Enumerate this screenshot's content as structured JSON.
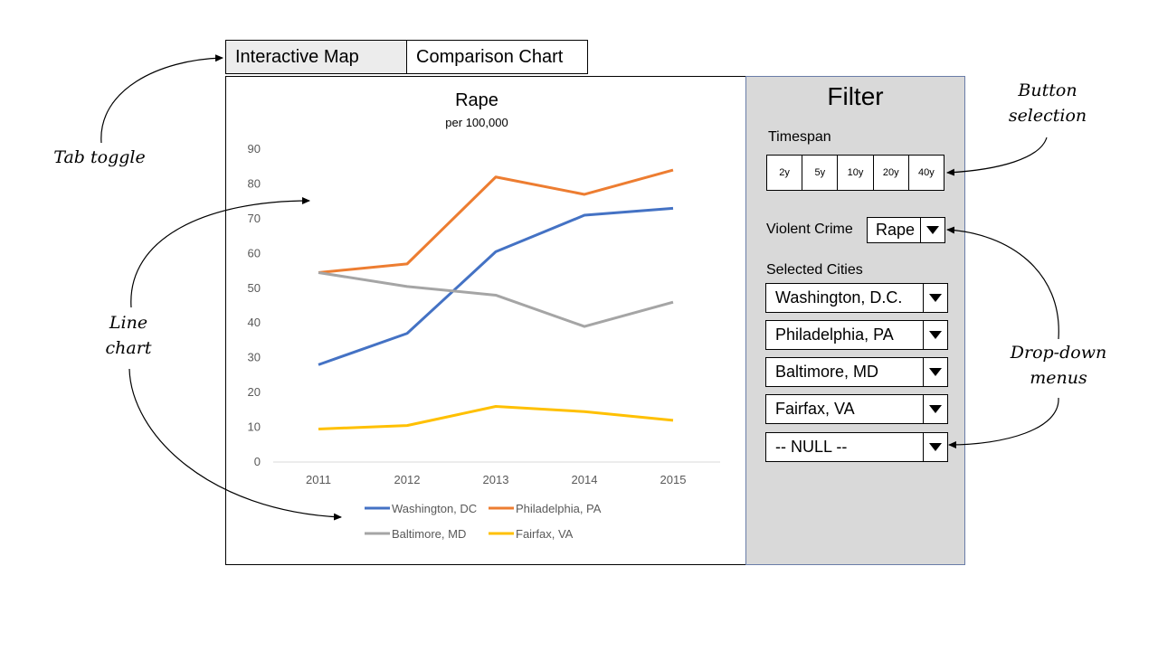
{
  "tabs": [
    {
      "label": "Interactive Map"
    },
    {
      "label": "Comparison Chart"
    }
  ],
  "filter": {
    "title": "Filter",
    "timespan_label": "Timespan",
    "timespan_options": [
      "2y",
      "5y",
      "10y",
      "20y",
      "40y"
    ],
    "crime_label": "Violent Crime",
    "crime_value": "Rape",
    "cities_label": "Selected Cities",
    "cities": [
      "Washington, D.C.",
      "Philadelphia, PA",
      "Baltimore, MD",
      "Fairfax, VA",
      "-- NULL --"
    ]
  },
  "annotations": {
    "tab_toggle": "Tab toggle",
    "button_selection_1": "Button",
    "button_selection_2": "selection",
    "line_chart_1": "Line",
    "line_chart_2": "chart",
    "dropdown_1": "Drop-down",
    "dropdown_2": "menus"
  },
  "chart_data": {
    "type": "line",
    "title": "Rape",
    "subtitle": "per 100,000",
    "x": [
      "2011",
      "2012",
      "2013",
      "2014",
      "2015"
    ],
    "ylim": [
      0,
      90
    ],
    "yticks": [
      0,
      10,
      20,
      30,
      40,
      50,
      60,
      70,
      80,
      90
    ],
    "grid": false,
    "legend": "bottom",
    "series": [
      {
        "name": "Washington, DC",
        "color": "#4472c4",
        "values": [
          28,
          37,
          60.5,
          71,
          73
        ]
      },
      {
        "name": "Philadelphia, PA",
        "color": "#ed7d31",
        "values": [
          54.5,
          57,
          82,
          77,
          84
        ]
      },
      {
        "name": "Baltimore, MD",
        "color": "#a5a5a5",
        "values": [
          54.5,
          50.5,
          48,
          39,
          46
        ]
      },
      {
        "name": "Fairfax, VA",
        "color": "#ffc000",
        "values": [
          9.5,
          10.5,
          16,
          14.5,
          12
        ]
      }
    ]
  }
}
